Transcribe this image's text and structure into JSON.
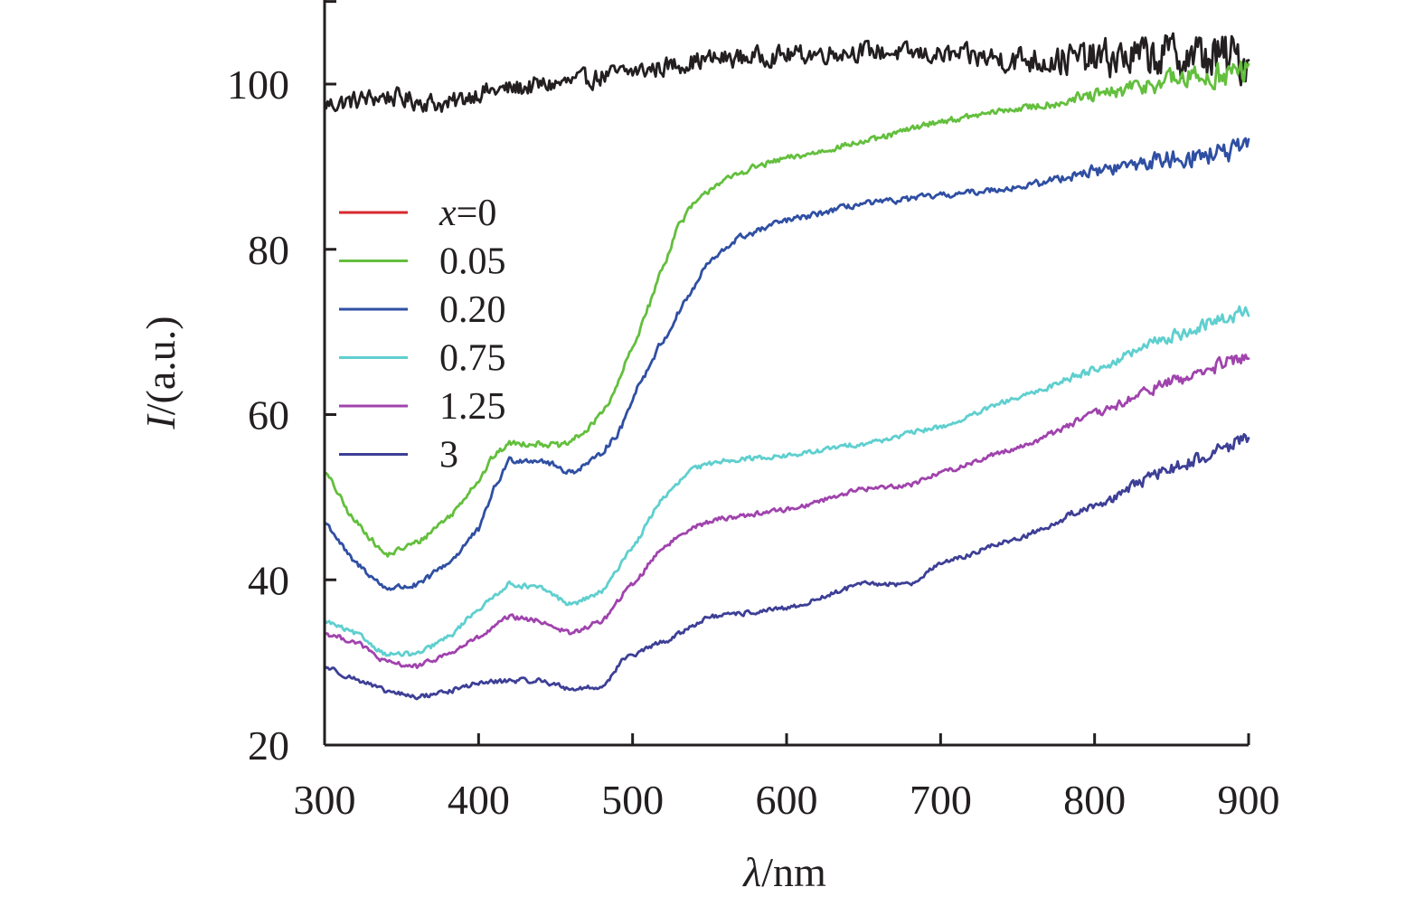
{
  "chart_data": {
    "type": "line",
    "title": "",
    "xlabel_italic": "λ",
    "xlabel_rest": "/nm",
    "ylabel_italic": "I",
    "ylabel_rest": "/(a.u.)",
    "xlim": [
      300,
      900
    ],
    "ylim": [
      20,
      110
    ],
    "x_ticks": [
      300,
      400,
      500,
      600,
      700,
      800,
      900
    ],
    "x_tick_labels": [
      "300",
      "400",
      "500",
      "600",
      "700",
      "800",
      "900"
    ],
    "y_ticks": [
      20,
      40,
      60,
      80,
      100
    ],
    "y_tick_labels": [
      "20",
      "40",
      "60",
      "80",
      "100"
    ],
    "legend_position": "left-middle",
    "series": [
      {
        "name": "x=0",
        "legend_italic": "x",
        "legend_rest": "=0",
        "color": "#231f20",
        "legend_color": "#d7282f",
        "noise": 1.6,
        "noise_ramp": [
          700,
          900,
          4.5
        ],
        "points": [
          [
            300,
            97.5
          ],
          [
            340,
            98.5
          ],
          [
            360,
            98.0
          ],
          [
            380,
            97.5
          ],
          [
            400,
            99.0
          ],
          [
            450,
            100.0
          ],
          [
            500,
            101.5
          ],
          [
            550,
            103.0
          ],
          [
            600,
            103.5
          ],
          [
            650,
            104.0
          ],
          [
            700,
            103.5
          ],
          [
            750,
            103.0
          ],
          [
            800,
            103.0
          ],
          [
            850,
            103.5
          ],
          [
            900,
            103.0
          ]
        ]
      },
      {
        "name": "0.05",
        "legend_italic": "",
        "legend_rest": "0.05",
        "color": "#63bf3d",
        "legend_color": "#63bf3d",
        "noise": 0.5,
        "noise_ramp": [
          750,
          900,
          2.5
        ],
        "points": [
          [
            300,
            53.0
          ],
          [
            320,
            47.0
          ],
          [
            340,
            43.0
          ],
          [
            360,
            44.5
          ],
          [
            380,
            47.5
          ],
          [
            400,
            52.0
          ],
          [
            410,
            55.0
          ],
          [
            420,
            56.5
          ],
          [
            440,
            56.5
          ],
          [
            455,
            56.2
          ],
          [
            470,
            58.0
          ],
          [
            485,
            61.5
          ],
          [
            500,
            68.0
          ],
          [
            510,
            73.0
          ],
          [
            520,
            78.0
          ],
          [
            530,
            83.0
          ],
          [
            540,
            85.5
          ],
          [
            555,
            88.0
          ],
          [
            580,
            90.0
          ],
          [
            600,
            91.0
          ],
          [
            650,
            93.0
          ],
          [
            700,
            95.5
          ],
          [
            750,
            97.0
          ],
          [
            800,
            98.5
          ],
          [
            850,
            100.5
          ],
          [
            900,
            101.5
          ]
        ]
      },
      {
        "name": "0.20",
        "legend_italic": "",
        "legend_rest": "0.20",
        "color": "#2f4fa3",
        "legend_color": "#2f4fa3",
        "noise": 0.5,
        "noise_ramp": [
          750,
          900,
          2.0
        ],
        "points": [
          [
            300,
            47.0
          ],
          [
            320,
            42.0
          ],
          [
            340,
            39.0
          ],
          [
            360,
            39.3
          ],
          [
            380,
            42.0
          ],
          [
            400,
            46.0
          ],
          [
            410,
            51.0
          ],
          [
            420,
            54.5
          ],
          [
            440,
            54.5
          ],
          [
            460,
            53.0
          ],
          [
            475,
            54.5
          ],
          [
            490,
            57.5
          ],
          [
            505,
            64.0
          ],
          [
            520,
            69.0
          ],
          [
            535,
            74.0
          ],
          [
            550,
            78.5
          ],
          [
            570,
            81.5
          ],
          [
            600,
            83.5
          ],
          [
            650,
            85.5
          ],
          [
            700,
            86.5
          ],
          [
            750,
            87.5
          ],
          [
            800,
            89.5
          ],
          [
            850,
            91.0
          ],
          [
            900,
            92.0
          ]
        ]
      },
      {
        "name": "0.75",
        "legend_italic": "",
        "legend_rest": "0.75",
        "color": "#5fcfcf",
        "legend_color": "#5fcfcf",
        "noise": 0.4,
        "noise_ramp": [
          750,
          900,
          1.3
        ],
        "points": [
          [
            300,
            35.0
          ],
          [
            320,
            33.5
          ],
          [
            340,
            31.0
          ],
          [
            360,
            31.0
          ],
          [
            380,
            33.0
          ],
          [
            400,
            36.5
          ],
          [
            420,
            39.5
          ],
          [
            440,
            39.0
          ],
          [
            460,
            37.0
          ],
          [
            480,
            38.5
          ],
          [
            500,
            44.0
          ],
          [
            520,
            50.0
          ],
          [
            540,
            53.5
          ],
          [
            560,
            54.5
          ],
          [
            600,
            55.0
          ],
          [
            650,
            56.5
          ],
          [
            700,
            58.5
          ],
          [
            750,
            62.0
          ],
          [
            800,
            65.5
          ],
          [
            850,
            69.5
          ],
          [
            900,
            72.5
          ]
        ]
      },
      {
        "name": "1.25",
        "legend_italic": "",
        "legend_rest": "1.25",
        "color": "#a043ad",
        "legend_color": "#a043ad",
        "noise": 0.4,
        "noise_ramp": [
          750,
          900,
          1.3
        ],
        "points": [
          [
            300,
            33.5
          ],
          [
            320,
            32.5
          ],
          [
            340,
            30.0
          ],
          [
            360,
            29.5
          ],
          [
            380,
            31.0
          ],
          [
            400,
            33.0
          ],
          [
            420,
            35.5
          ],
          [
            440,
            35.0
          ],
          [
            460,
            33.5
          ],
          [
            480,
            35.0
          ],
          [
            500,
            39.5
          ],
          [
            520,
            44.0
          ],
          [
            540,
            46.5
          ],
          [
            560,
            47.5
          ],
          [
            600,
            48.5
          ],
          [
            650,
            51.0
          ],
          [
            680,
            51.5
          ],
          [
            700,
            53.0
          ],
          [
            750,
            56.0
          ],
          [
            800,
            60.0
          ],
          [
            850,
            64.0
          ],
          [
            900,
            67.0
          ]
        ]
      },
      {
        "name": "3",
        "legend_italic": "",
        "legend_rest": "3",
        "color": "#3d3f96",
        "legend_color": "#3d3f96",
        "noise": 0.4,
        "noise_ramp": [
          750,
          900,
          1.3
        ],
        "points": [
          [
            300,
            29.5
          ],
          [
            320,
            28.0
          ],
          [
            340,
            26.5
          ],
          [
            360,
            25.8
          ],
          [
            380,
            26.5
          ],
          [
            400,
            27.5
          ],
          [
            420,
            27.8
          ],
          [
            440,
            27.8
          ],
          [
            460,
            26.8
          ],
          [
            480,
            27.0
          ],
          [
            495,
            30.5
          ],
          [
            520,
            32.5
          ],
          [
            550,
            35.5
          ],
          [
            600,
            36.5
          ],
          [
            650,
            39.5
          ],
          [
            680,
            39.5
          ],
          [
            700,
            42.0
          ],
          [
            750,
            45.0
          ],
          [
            800,
            49.0
          ],
          [
            850,
            53.5
          ],
          [
            900,
            57.0
          ]
        ]
      }
    ]
  }
}
